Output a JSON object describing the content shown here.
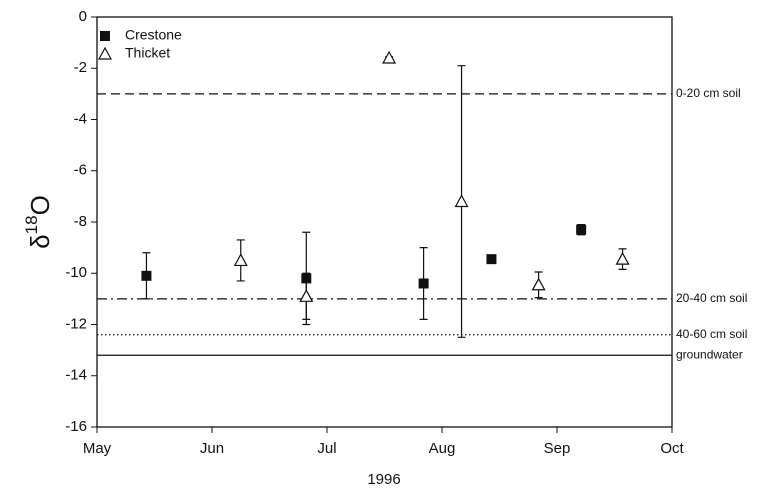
{
  "chart_data": {
    "type": "scatter",
    "ylabel": [
      "δ",
      "18",
      "O"
    ],
    "xlabel": "1996",
    "xlim": [
      5,
      10
    ],
    "xticks": [
      {
        "value": 5,
        "label": "May"
      },
      {
        "value": 6,
        "label": "Jun"
      },
      {
        "value": 7,
        "label": "Jul"
      },
      {
        "value": 8,
        "label": "Aug"
      },
      {
        "value": 9,
        "label": "Sep"
      },
      {
        "value": 10,
        "label": "Oct"
      }
    ],
    "ylim": [
      -16,
      0
    ],
    "yticks": [
      -16,
      -14,
      -12,
      -10,
      -8,
      -6,
      -4,
      -2,
      0
    ],
    "legend": "upper left",
    "series": [
      {
        "name": "Crestone",
        "marker": "square",
        "color": "#111111",
        "x": [
          5.43,
          6.82,
          7.84,
          8.43,
          9.21
        ],
        "values": [
          -10.1,
          -10.2,
          -10.4,
          -9.45,
          -8.3
        ],
        "errors": [
          0.9,
          1.8,
          1.4,
          0.1,
          0.2
        ]
      },
      {
        "name": "Thicket",
        "marker": "triangle",
        "color": "#111111",
        "x": [
          6.25,
          6.82,
          7.54,
          8.17,
          8.84,
          9.57
        ],
        "values": [
          -9.5,
          -10.9,
          -1.6,
          -7.2,
          -10.45,
          -9.45
        ],
        "errors": [
          0.8,
          0.9,
          0.05,
          5.3,
          0.5,
          0.4
        ]
      }
    ],
    "reference_lines": [
      {
        "label": "0-20 cm soil",
        "value": -3.0,
        "style": "dashed"
      },
      {
        "label": "20-40 cm soil",
        "value": -11.0,
        "style": "dashdot"
      },
      {
        "label": "40-60 cm soil",
        "value": -12.4,
        "style": "dotted"
      },
      {
        "label": "groundwater",
        "value": -13.2,
        "style": "solid"
      }
    ]
  }
}
